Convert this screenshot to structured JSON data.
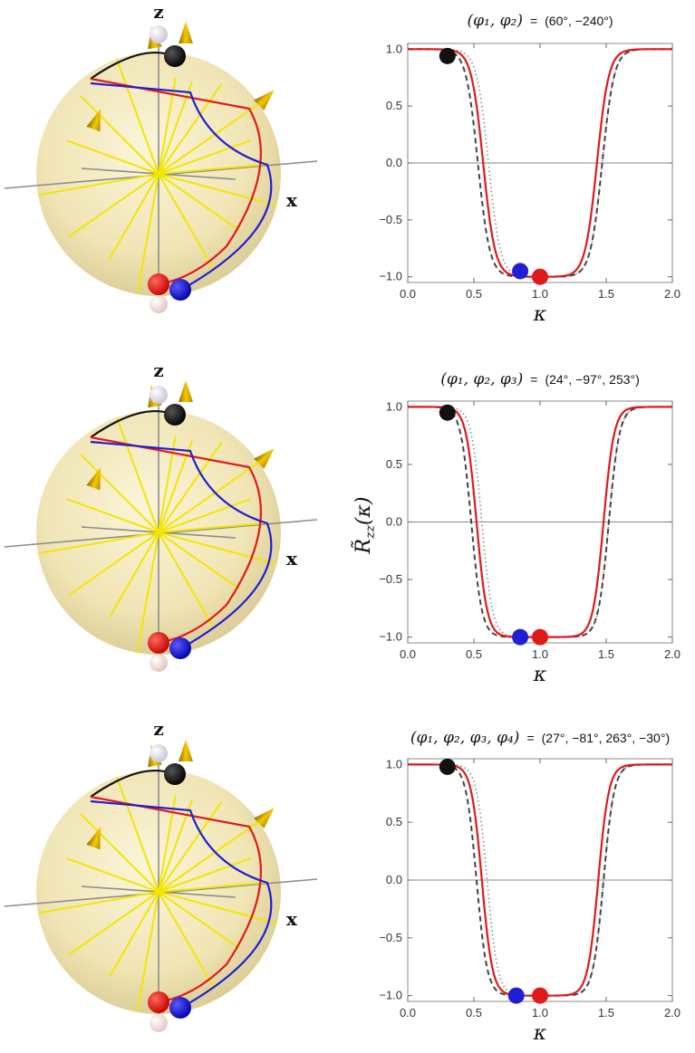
{
  "figure": {
    "y_axis_label": "R̃",
    "y_axis_label_sub": "zz",
    "y_axis_label_arg": "(κ)",
    "x_axis_label": "κ",
    "sphere_axis_z": "z",
    "sphere_axis_x": "x"
  },
  "colors": {
    "red": "#e0191b",
    "blue": "#1f1fd6",
    "black": "#111111",
    "dashed": "#444444",
    "dotted": "#888888",
    "sphere": "#f3e9b8",
    "yellow_lines": "#f2e600",
    "cone": "#e6b800"
  },
  "chart_data": [
    {
      "type": "line",
      "title_vars": "(φ₁, φ₂)",
      "title_eq": "=",
      "title_values": "(60°, −240°)",
      "xlabel": "κ",
      "ylabel": "",
      "xlim": [
        0,
        2
      ],
      "ylim": [
        -1.05,
        1.05
      ],
      "x_ticks": [
        "0.0",
        "0.5",
        "1.0",
        "1.5",
        "2.0"
      ],
      "y_ticks": [
        "1.0",
        "0.5",
        "0.0",
        "−0.5",
        "−1.0"
      ],
      "series": [
        {
          "style": "solid-red",
          "center": 1.0,
          "half_width": 0.43,
          "steep": 0.09
        },
        {
          "style": "dashed-dark",
          "center": 1.0,
          "half_width": 0.47,
          "steep": 0.09
        },
        {
          "style": "dotted-gray",
          "center": 1.04,
          "half_width": 0.43,
          "steep": 0.09
        }
      ],
      "markers": [
        {
          "color": "black",
          "x": 0.3,
          "y": 0.94
        },
        {
          "color": "blue",
          "x": 0.85,
          "y": -0.95
        },
        {
          "color": "red",
          "x": 1.0,
          "y": -1.0
        }
      ]
    },
    {
      "type": "line",
      "title_vars": "(φ₁, φ₂, φ₃)",
      "title_eq": "=",
      "title_values": "(24°, −97°, 253°)",
      "xlabel": "κ",
      "ylabel": "",
      "xlim": [
        0,
        2
      ],
      "ylim": [
        -1.05,
        1.05
      ],
      "x_ticks": [
        "0.0",
        "0.5",
        "1.0",
        "1.5",
        "2.0"
      ],
      "y_ticks": [
        "1.0",
        "0.5",
        "0.0",
        "−0.5",
        "−1.0"
      ],
      "series": [
        {
          "style": "solid-red",
          "center": 1.0,
          "half_width": 0.48,
          "steep": 0.08
        },
        {
          "style": "dashed-dark",
          "center": 1.0,
          "half_width": 0.52,
          "steep": 0.08
        },
        {
          "style": "dotted-gray",
          "center": 1.04,
          "half_width": 0.48,
          "steep": 0.08
        }
      ],
      "markers": [
        {
          "color": "black",
          "x": 0.3,
          "y": 0.95
        },
        {
          "color": "blue",
          "x": 0.85,
          "y": -1.0
        },
        {
          "color": "red",
          "x": 1.0,
          "y": -1.0
        }
      ]
    },
    {
      "type": "line",
      "title_vars": "(φ₁, φ₂, φ₃, φ₄)",
      "title_eq": "=",
      "title_values": "(27°, −81°, 263°, −30°)",
      "xlabel": "κ",
      "ylabel": "",
      "xlim": [
        0,
        2
      ],
      "ylim": [
        -1.05,
        1.05
      ],
      "x_ticks": [
        "0.0",
        "0.5",
        "1.0",
        "1.5",
        "2.0"
      ],
      "y_ticks": [
        "1.0",
        "0.5",
        "0.0",
        "−0.5",
        "−1.0"
      ],
      "series": [
        {
          "style": "solid-red",
          "center": 1.0,
          "half_width": 0.44,
          "steep": 0.08
        },
        {
          "style": "dashed-dark",
          "center": 1.0,
          "half_width": 0.48,
          "steep": 0.08
        },
        {
          "style": "dotted-gray",
          "center": 1.04,
          "half_width": 0.44,
          "steep": 0.08
        }
      ],
      "markers": [
        {
          "color": "black",
          "x": 0.3,
          "y": 0.98
        },
        {
          "color": "blue",
          "x": 0.82,
          "y": -1.0
        },
        {
          "color": "red",
          "x": 1.0,
          "y": -1.0
        }
      ]
    }
  ]
}
